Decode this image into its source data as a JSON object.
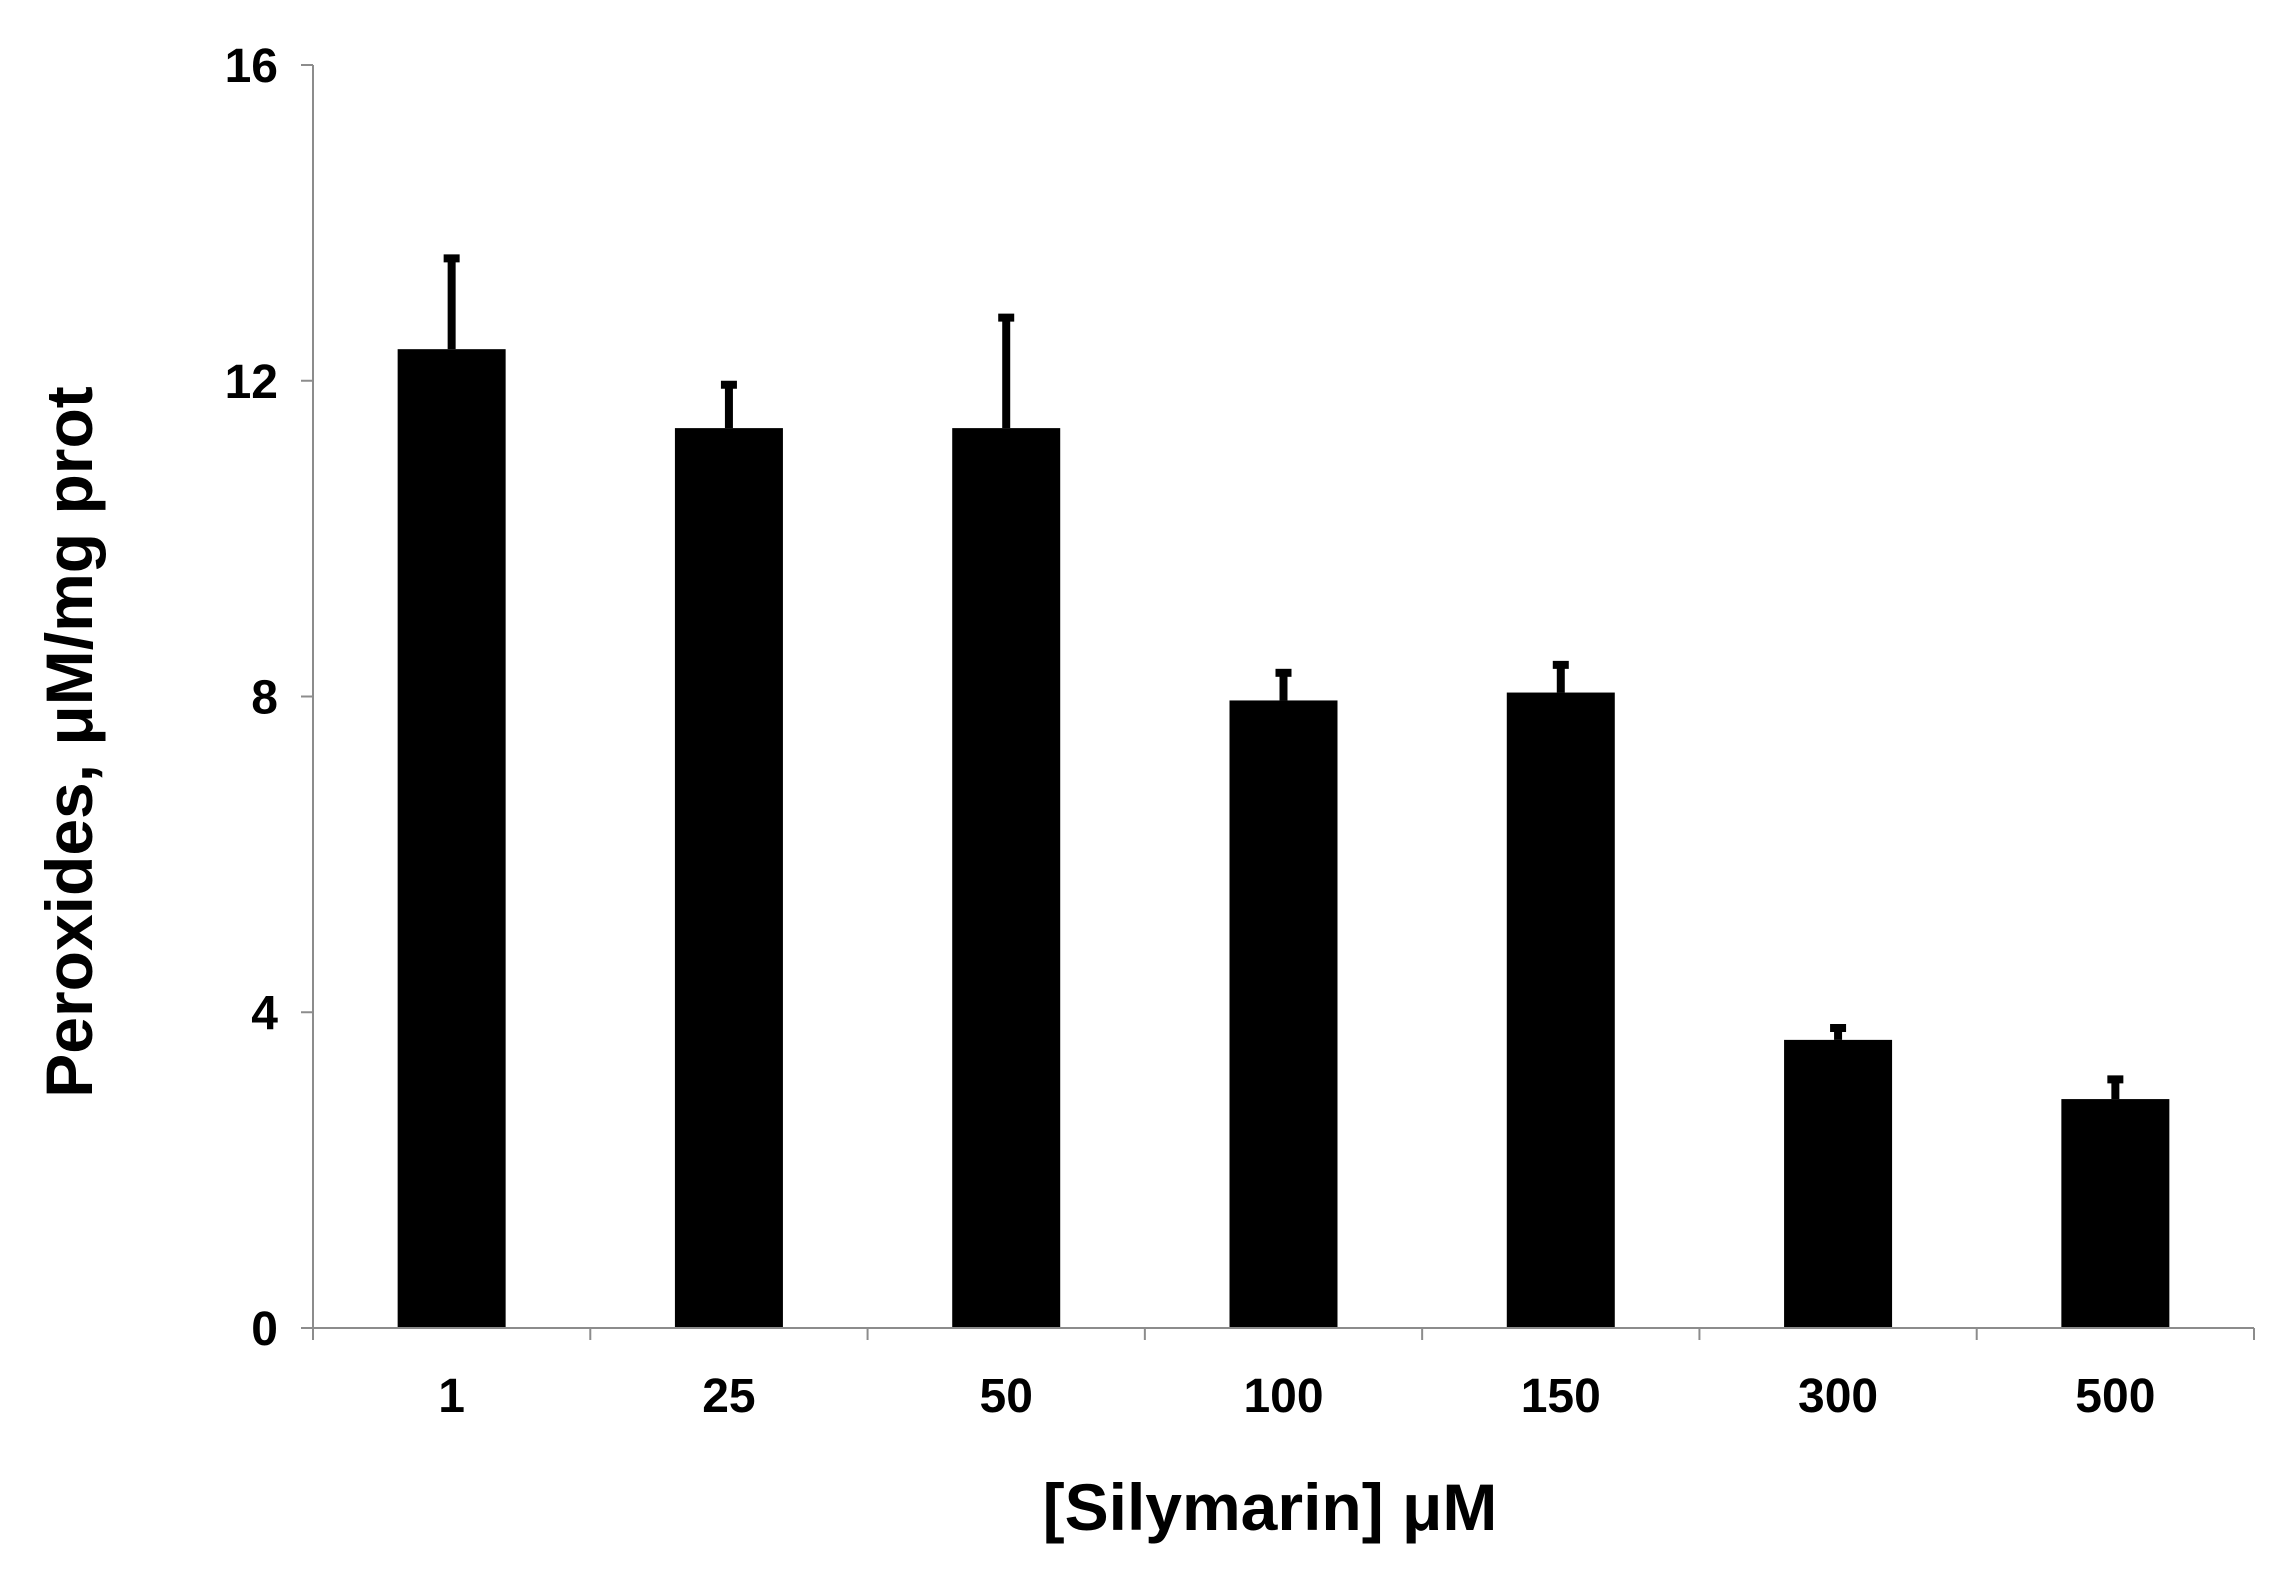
{
  "chart_data": {
    "type": "bar",
    "xlabel": "[Silymarin] μM",
    "ylabel": "Peroxides, μM/mg prot",
    "categories": [
      "1",
      "25",
      "50",
      "100",
      "150",
      "300",
      "500"
    ],
    "values": [
      12.4,
      11.4,
      11.4,
      7.95,
      8.05,
      3.65,
      2.9
    ],
    "error_upper": [
      13.55,
      11.95,
      12.8,
      8.3,
      8.4,
      3.8,
      3.15
    ],
    "ylim": [
      0,
      16
    ],
    "yticks": [
      0,
      4,
      8,
      12,
      16
    ],
    "grid": false,
    "bar_color": "#000000"
  }
}
